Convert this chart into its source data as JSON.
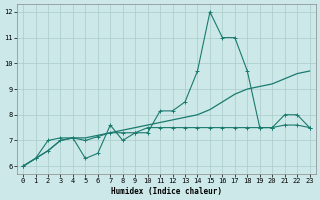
{
  "xlabel": "Humidex (Indice chaleur)",
  "background_color": "#cce8e8",
  "grid_color": "#aacccc",
  "line_color": "#1a7a6e",
  "xlim": [
    -0.5,
    23.5
  ],
  "ylim": [
    5.7,
    12.3
  ],
  "xticks": [
    0,
    1,
    2,
    3,
    4,
    5,
    6,
    7,
    8,
    9,
    10,
    11,
    12,
    13,
    14,
    15,
    16,
    17,
    18,
    19,
    20,
    21,
    22,
    23
  ],
  "yticks": [
    6,
    7,
    8,
    9,
    10,
    11,
    12
  ],
  "line1_x": [
    0,
    1,
    2,
    3,
    4,
    5,
    6,
    7,
    8,
    9,
    10,
    11,
    12,
    13,
    14,
    15,
    16,
    17,
    18,
    19,
    20,
    21,
    22,
    23
  ],
  "line1_y": [
    6.0,
    6.3,
    6.6,
    7.0,
    7.1,
    6.3,
    6.5,
    7.6,
    7.0,
    7.3,
    7.3,
    8.15,
    8.15,
    8.5,
    9.7,
    12.0,
    11.0,
    11.0,
    9.7,
    7.5,
    7.5,
    8.0,
    8.0,
    7.5
  ],
  "line2_x": [
    0,
    1,
    2,
    3,
    4,
    5,
    6,
    7,
    8,
    9,
    10,
    11,
    12,
    13,
    14,
    15,
    16,
    17,
    18,
    19,
    20,
    21,
    22,
    23
  ],
  "line2_y": [
    6.0,
    6.3,
    7.0,
    7.1,
    7.1,
    7.0,
    7.15,
    7.3,
    7.3,
    7.3,
    7.5,
    7.5,
    7.5,
    7.5,
    7.5,
    7.5,
    7.5,
    7.5,
    7.5,
    7.5,
    7.5,
    7.6,
    7.6,
    7.5
  ],
  "line3_x": [
    0,
    1,
    2,
    3,
    4,
    5,
    6,
    7,
    8,
    9,
    10,
    11,
    12,
    13,
    14,
    15,
    16,
    17,
    18,
    19,
    20,
    21,
    22,
    23
  ],
  "line3_y": [
    6.0,
    6.3,
    6.6,
    7.0,
    7.1,
    7.1,
    7.2,
    7.3,
    7.4,
    7.5,
    7.6,
    7.7,
    7.8,
    7.9,
    8.0,
    8.2,
    8.5,
    8.8,
    9.0,
    9.1,
    9.2,
    9.4,
    9.6,
    9.7
  ]
}
